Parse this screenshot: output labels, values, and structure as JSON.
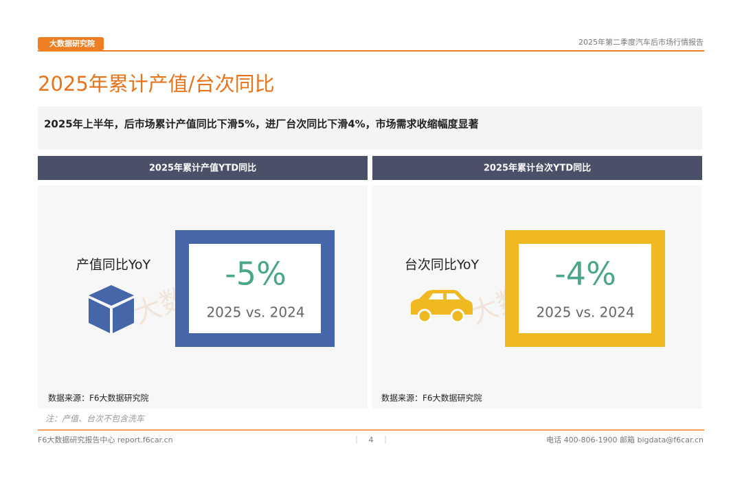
{
  "header": {
    "logo": "大数据研究院",
    "report": "2025年第二季度汽车后市场行情报告"
  },
  "title": "2025年累计产值/台次同比",
  "summary": "2025年上半年，后市场累计产值同比下滑5%，进厂台次同比下滑4%，市场需求收缩幅度显著",
  "watermark": "大数据研究院",
  "panels": [
    {
      "heading": "2025年累计产值YTD同比",
      "label": "产值同比YoY",
      "kpi": "-5%",
      "period": "2025 vs. 2024",
      "source": "数据来源：F6大数据研究院"
    },
    {
      "heading": "2025年累计台次YTD同比",
      "label": "台次同比YoY",
      "kpi": "-4%",
      "period": "2025 vs. 2024",
      "source": "数据来源：F6大数据研究院"
    }
  ],
  "note": "注：产值、台次不包含洗车",
  "footer": {
    "left": "F6大数据研究报告中心 report.f6car.cn",
    "page": "4",
    "contact": "电话 400-806-1900  邮箱 bigdata@f6car.cn"
  }
}
